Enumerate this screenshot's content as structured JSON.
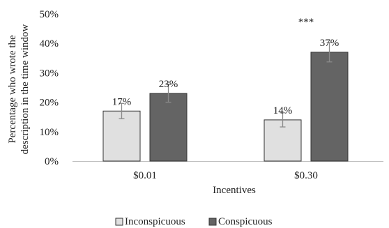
{
  "chart_data": {
    "type": "bar",
    "categories": [
      "$0.01",
      "$0.30"
    ],
    "series": [
      {
        "name": "Inconspicuous",
        "values": [
          17,
          14
        ],
        "labels": [
          "17%",
          "14%"
        ],
        "error": [
          2.6,
          2.4
        ],
        "color": "#e0e0e0"
      },
      {
        "name": "Conspicuous",
        "values": [
          23,
          37
        ],
        "labels": [
          "23%",
          "37%"
        ],
        "error": [
          3.0,
          3.3
        ],
        "color": "#646464"
      }
    ],
    "xlabel": "Incentives",
    "ylabel_lines": [
      "Percentage who wrote the",
      "description in the time window"
    ],
    "yticks": [
      "0%",
      "10%",
      "20%",
      "30%",
      "40%",
      "50%"
    ],
    "ylim": [
      0,
      50
    ],
    "annotation": {
      "text": "***",
      "category": "$0.30"
    },
    "legend_position": "bottom",
    "grid": false
  }
}
